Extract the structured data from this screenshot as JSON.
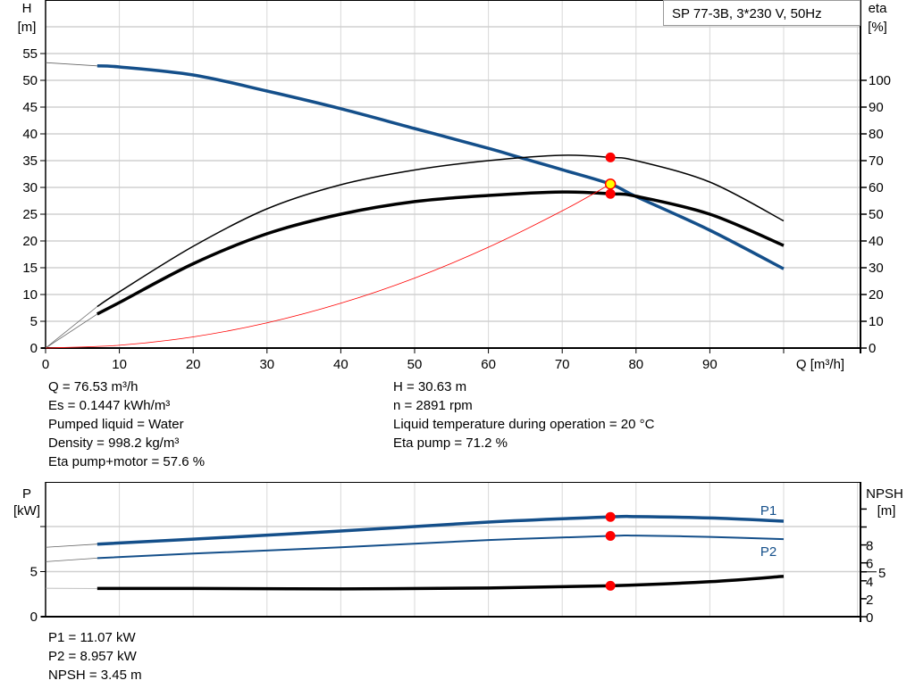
{
  "chart_data": [
    {
      "type": "line",
      "title": "SP 77-3B, 3*230 V, 50Hz",
      "xlabel": "Q [m³/h]",
      "ylabel": "H\n[m]",
      "y2label": "eta\n[%]",
      "xlim": [
        0,
        110
      ],
      "ylim": [
        0,
        65
      ],
      "y2lim": [
        0,
        130
      ],
      "grid": true,
      "x_ticks": [
        "0",
        "10",
        "20",
        "30",
        "40",
        "50",
        "60",
        "70",
        "80",
        "90"
      ],
      "y_ticks": [
        "0",
        "5",
        "10",
        "15",
        "20",
        "25",
        "30",
        "35",
        "40",
        "45",
        "50",
        "55"
      ],
      "y2_ticks": [
        "0",
        "10",
        "20",
        "30",
        "40",
        "50",
        "60",
        "70",
        "80",
        "90",
        "100"
      ],
      "series": [
        {
          "id": "head",
          "axis": "left",
          "color": "#144f8a",
          "x": [
            7,
            10,
            20,
            30,
            40,
            50,
            60,
            64,
            70,
            76.53,
            80,
            90,
            100
          ],
          "y": [
            52.7,
            52.5,
            51,
            48,
            44.7,
            41,
            37.3,
            35.7,
            33.3,
            30.63,
            28.3,
            22,
            14.8
          ],
          "extrapolated": {
            "x": [
              0,
              7
            ],
            "y": [
              53.3,
              52.7
            ]
          }
        },
        {
          "id": "eta-pump",
          "axis": "right",
          "color": "#000000",
          "x": [
            7,
            10,
            20,
            30,
            40,
            50,
            60,
            70,
            76.53,
            80,
            90,
            100
          ],
          "y": [
            15.5,
            21,
            38,
            52,
            61,
            66.5,
            70,
            72,
            71.2,
            70,
            62,
            47.5
          ],
          "extrapolated": {
            "x": [
              0,
              7
            ],
            "y": [
              0,
              15.5
            ]
          }
        },
        {
          "id": "eta-pump-motor",
          "axis": "right",
          "color": "#000000",
          "x": [
            7,
            10,
            20,
            30,
            40,
            50,
            60,
            70,
            76.53,
            80,
            90,
            100
          ],
          "y": [
            12.7,
            17,
            31.5,
            42.7,
            50,
            54.7,
            57,
            58.3,
            57.6,
            56.7,
            50,
            38.3
          ],
          "extrapolated": {
            "x": [
              0,
              7
            ],
            "y": [
              0,
              12.7
            ]
          }
        },
        {
          "id": "system-curve",
          "axis": "left",
          "color": "#ff0000",
          "x": [
            0,
            10,
            20,
            30,
            40,
            50,
            60,
            70,
            76.53
          ],
          "y": [
            0,
            0.52,
            2.09,
            4.71,
            8.37,
            13.07,
            18.83,
            25.62,
            30.63
          ]
        }
      ],
      "operating_points": [
        {
          "series": "head",
          "x": 76.53,
          "y": 30.63,
          "color": "#ffff00"
        },
        {
          "series": "eta-pump",
          "x": 76.53,
          "y": 71.2,
          "color": "#ff0000"
        },
        {
          "series": "eta-pump-motor",
          "x": 76.53,
          "y": 57.6,
          "color": "#ff0000"
        }
      ]
    },
    {
      "type": "line",
      "ylabel": "P\n[kW]",
      "y2label": "NPSH\n[m]",
      "xlim": [
        0,
        110
      ],
      "ylim": [
        0,
        15
      ],
      "y2lim": [
        0,
        15
      ],
      "grid": true,
      "y_ticks": [
        "0",
        "5"
      ],
      "y2_ticks": [
        "0",
        "2",
        "4",
        "5",
        "6",
        "8"
      ],
      "series": [
        {
          "id": "P1",
          "name": "P1",
          "axis": "left",
          "color": "#144f8a",
          "x": [
            7,
            20,
            40,
            60,
            76.53,
            80,
            90,
            100
          ],
          "y": [
            8.05,
            8.6,
            9.5,
            10.5,
            11.07,
            11.1,
            10.95,
            10.6
          ],
          "extrapolated": {
            "x": [
              0,
              7
            ],
            "y": [
              7.7,
              8.05
            ]
          }
        },
        {
          "id": "P2",
          "name": "P2",
          "axis": "left",
          "color": "#144f8a",
          "x": [
            7,
            20,
            40,
            60,
            76.53,
            80,
            90,
            100
          ],
          "y": [
            6.5,
            7.0,
            7.7,
            8.5,
            8.957,
            9.0,
            8.85,
            8.6
          ],
          "extrapolated": {
            "x": [
              0,
              7
            ],
            "y": [
              6.1,
              6.5
            ]
          }
        },
        {
          "id": "NPSH",
          "axis": "right",
          "color": "#000000",
          "x": [
            7,
            20,
            40,
            60,
            76.53,
            90,
            100
          ],
          "y": [
            3.15,
            3.15,
            3.1,
            3.2,
            3.45,
            3.9,
            4.5
          ],
          "extrapolated": {
            "x": [
              0,
              7
            ],
            "y": [
              3.17,
              3.15
            ]
          }
        }
      ],
      "operating_points": [
        {
          "series": "P1",
          "x": 76.53,
          "y": 11.07,
          "color": "#ff0000"
        },
        {
          "series": "P2",
          "x": 76.53,
          "y": 8.957,
          "color": "#ff0000"
        },
        {
          "series": "NPSH",
          "x": 76.53,
          "y": 3.45,
          "color": "#ff0000"
        }
      ]
    }
  ],
  "info_top": {
    "left": [
      "Q = 76.53 m³/h",
      "Es = 0.1447 kWh/m³",
      "Pumped liquid = Water",
      "Density = 998.2 kg/m³",
      "Eta pump+motor = 57.6 %"
    ],
    "right": [
      "H = 30.63 m",
      "n = 2891 rpm",
      "Liquid temperature during operation = 20 °C",
      "Eta pump = 71.2 %"
    ]
  },
  "info_bottom": [
    "P1 = 11.07 kW",
    "P2 = 8.957 kW",
    "NPSH = 3.45 m"
  ]
}
